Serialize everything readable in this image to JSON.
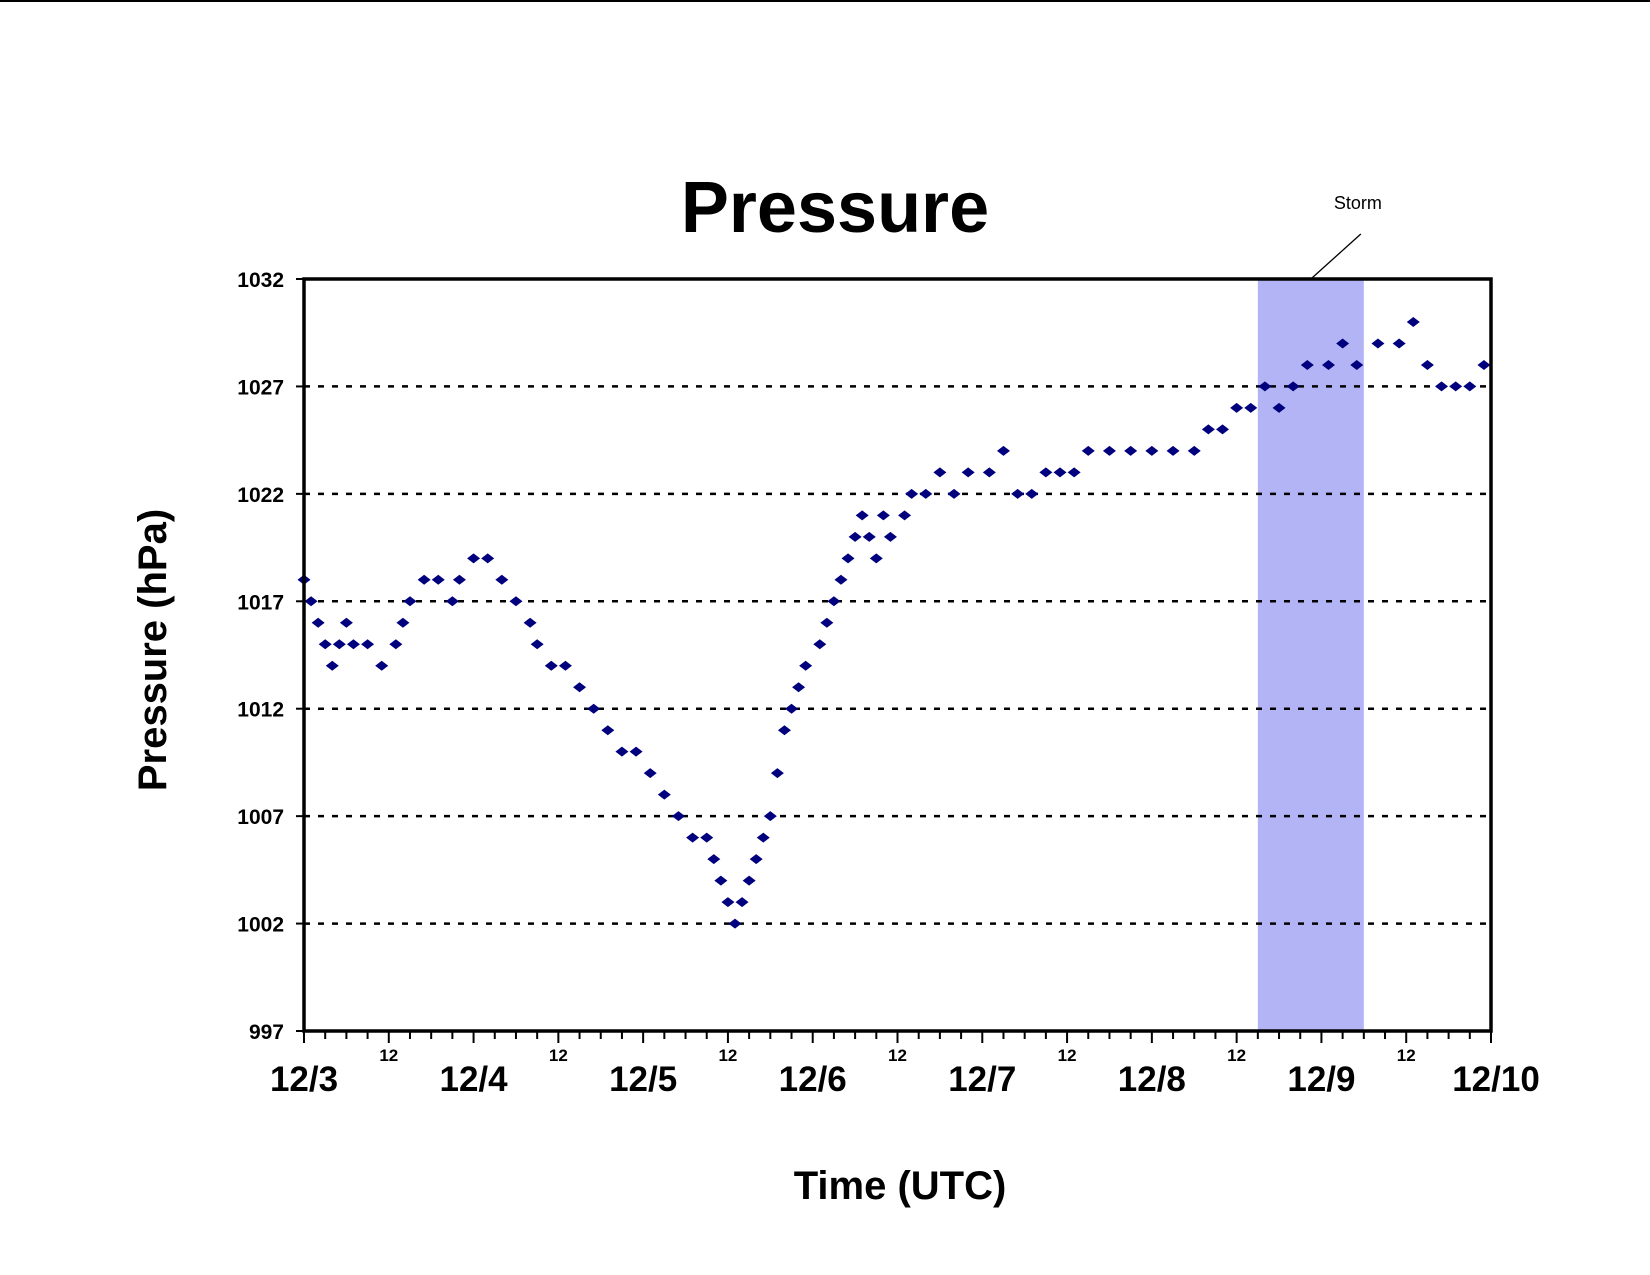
{
  "chart_data": {
    "type": "scatter",
    "title": "Pressure",
    "xlabel": "Time (UTC)",
    "ylabel": "Pressure (hPa)",
    "ylim": [
      997,
      1032
    ],
    "yticks": [
      "997",
      "1002",
      "1007",
      "1012",
      "1017",
      "1022",
      "1027",
      "1032"
    ],
    "xlim_days": [
      "12/3",
      "12/10"
    ],
    "day_labels": [
      "12/3",
      "12/4",
      "12/5",
      "12/6",
      "12/7",
      "12/8",
      "12/9",
      "12/10"
    ],
    "half_day_label": "12",
    "grid": "horizontal dashed",
    "colors": {
      "marker": "#00007f",
      "storm_band": "#b3b4f5",
      "grid": "#000000"
    },
    "annotation": {
      "text": "Storm",
      "start": "12/8 15:00",
      "end": "12/9 06:00"
    },
    "series": [
      {
        "marker": "diamond",
        "points": [
          [
            "12/3 00:00",
            1018
          ],
          [
            "12/3 01:00",
            1017
          ],
          [
            "12/3 02:00",
            1016
          ],
          [
            "12/3 03:00",
            1015
          ],
          [
            "12/3 04:00",
            1014
          ],
          [
            "12/3 05:00",
            1015
          ],
          [
            "12/3 06:00",
            1016
          ],
          [
            "12/3 07:00",
            1015
          ],
          [
            "12/3 09:00",
            1015
          ],
          [
            "12/3 11:00",
            1014
          ],
          [
            "12/3 13:00",
            1015
          ],
          [
            "12/3 14:00",
            1016
          ],
          [
            "12/3 15:00",
            1017
          ],
          [
            "12/3 17:00",
            1018
          ],
          [
            "12/3 19:00",
            1018
          ],
          [
            "12/3 21:00",
            1017
          ],
          [
            "12/3 22:00",
            1018
          ],
          [
            "12/4 00:00",
            1019
          ],
          [
            "12/4 02:00",
            1019
          ],
          [
            "12/4 04:00",
            1018
          ],
          [
            "12/4 06:00",
            1017
          ],
          [
            "12/4 08:00",
            1016
          ],
          [
            "12/4 09:00",
            1015
          ],
          [
            "12/4 11:00",
            1014
          ],
          [
            "12/4 13:00",
            1014
          ],
          [
            "12/4 15:00",
            1013
          ],
          [
            "12/4 17:00",
            1012
          ],
          [
            "12/4 19:00",
            1011
          ],
          [
            "12/4 21:00",
            1010
          ],
          [
            "12/4 23:00",
            1010
          ],
          [
            "12/5 01:00",
            1009
          ],
          [
            "12/5 03:00",
            1008
          ],
          [
            "12/5 05:00",
            1007
          ],
          [
            "12/5 07:00",
            1006
          ],
          [
            "12/5 09:00",
            1006
          ],
          [
            "12/5 10:00",
            1005
          ],
          [
            "12/5 11:00",
            1004
          ],
          [
            "12/5 12:00",
            1003
          ],
          [
            "12/5 13:00",
            1002
          ],
          [
            "12/5 14:00",
            1003
          ],
          [
            "12/5 15:00",
            1004
          ],
          [
            "12/5 16:00",
            1005
          ],
          [
            "12/5 17:00",
            1006
          ],
          [
            "12/5 18:00",
            1007
          ],
          [
            "12/5 19:00",
            1009
          ],
          [
            "12/5 20:00",
            1011
          ],
          [
            "12/5 21:00",
            1012
          ],
          [
            "12/5 22:00",
            1013
          ],
          [
            "12/5 23:00",
            1014
          ],
          [
            "12/6 01:00",
            1015
          ],
          [
            "12/6 02:00",
            1016
          ],
          [
            "12/6 03:00",
            1017
          ],
          [
            "12/6 04:00",
            1018
          ],
          [
            "12/6 05:00",
            1019
          ],
          [
            "12/6 06:00",
            1020
          ],
          [
            "12/6 07:00",
            1021
          ],
          [
            "12/6 08:00",
            1020
          ],
          [
            "12/6 09:00",
            1019
          ],
          [
            "12/6 10:00",
            1021
          ],
          [
            "12/6 11:00",
            1020
          ],
          [
            "12/6 13:00",
            1021
          ],
          [
            "12/6 14:00",
            1022
          ],
          [
            "12/6 16:00",
            1022
          ],
          [
            "12/6 18:00",
            1023
          ],
          [
            "12/6 20:00",
            1022
          ],
          [
            "12/6 22:00",
            1023
          ],
          [
            "12/7 01:00",
            1023
          ],
          [
            "12/7 03:00",
            1024
          ],
          [
            "12/7 05:00",
            1022
          ],
          [
            "12/7 07:00",
            1022
          ],
          [
            "12/7 09:00",
            1023
          ],
          [
            "12/7 11:00",
            1023
          ],
          [
            "12/7 13:00",
            1023
          ],
          [
            "12/7 15:00",
            1024
          ],
          [
            "12/7 18:00",
            1024
          ],
          [
            "12/7 21:00",
            1024
          ],
          [
            "12/8 00:00",
            1024
          ],
          [
            "12/8 03:00",
            1024
          ],
          [
            "12/8 06:00",
            1024
          ],
          [
            "12/8 08:00",
            1025
          ],
          [
            "12/8 10:00",
            1025
          ],
          [
            "12/8 12:00",
            1026
          ],
          [
            "12/8 14:00",
            1026
          ],
          [
            "12/8 16:00",
            1027
          ],
          [
            "12/8 18:00",
            1026
          ],
          [
            "12/8 20:00",
            1027
          ],
          [
            "12/8 22:00",
            1028
          ],
          [
            "12/9 01:00",
            1028
          ],
          [
            "12/9 03:00",
            1029
          ],
          [
            "12/9 05:00",
            1028
          ],
          [
            "12/9 08:00",
            1029
          ],
          [
            "12/9 11:00",
            1029
          ],
          [
            "12/9 13:00",
            1030
          ],
          [
            "12/9 15:00",
            1028
          ],
          [
            "12/9 17:00",
            1027
          ],
          [
            "12/9 19:00",
            1027
          ],
          [
            "12/9 21:00",
            1027
          ],
          [
            "12/9 23:00",
            1028
          ]
        ]
      }
    ]
  }
}
